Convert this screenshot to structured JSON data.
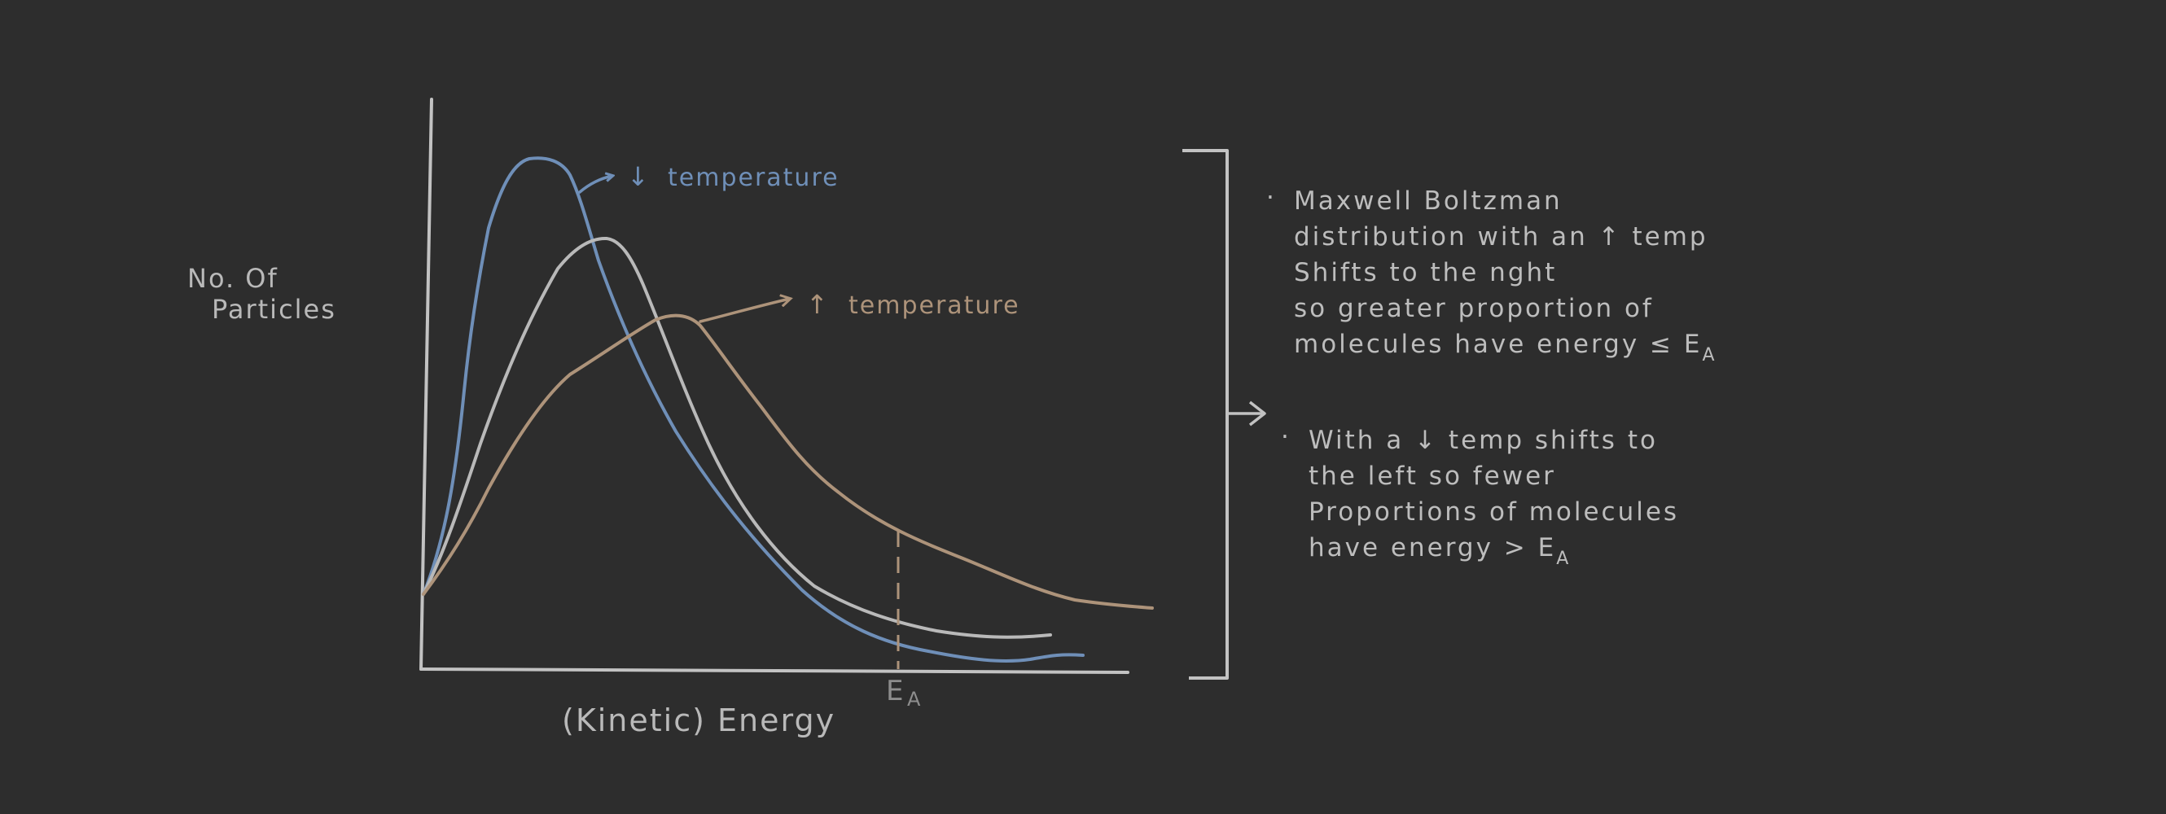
{
  "chart_data": {
    "type": "line",
    "xlabel": "(Kinetic) Energy",
    "ylabel_lines": [
      "No. Of",
      "Particles"
    ],
    "x_marker": {
      "main": "E",
      "sub": "A"
    },
    "annotations": {
      "low": {
        "arrow": "↓",
        "text": "temperature"
      },
      "high": {
        "arrow": "↑",
        "text": "temperature"
      }
    },
    "series": [
      {
        "color": "#6f8fb8",
        "role": "low-temperature"
      },
      {
        "color": "#b9b9b9",
        "role": "reference"
      },
      {
        "color": "#ad937a",
        "role": "high-temperature"
      }
    ]
  },
  "notes": [
    {
      "bullet": "·",
      "lines": [
        "Maxwell Boltzman",
        "distribution with an ↑ temp",
        "Shifts to the nght",
        "so greater proportion of"
      ],
      "last_line": {
        "text": "molecules have energy ≤ E",
        "sub": "A"
      }
    },
    {
      "bullet": "·",
      "lines": [
        "With a ↓ temp shifts to",
        "the left so fewer",
        "Proportions of molecules"
      ],
      "last_line": {
        "text": "have energy > E",
        "sub": "A"
      }
    }
  ],
  "colors": {
    "background": "#2d2d2d",
    "axis": "#c2c2c2",
    "blue": "#6f8fb8",
    "grey": "#b9b9b9",
    "tan": "#ad937a",
    "marker": "#8d8d8d"
  }
}
